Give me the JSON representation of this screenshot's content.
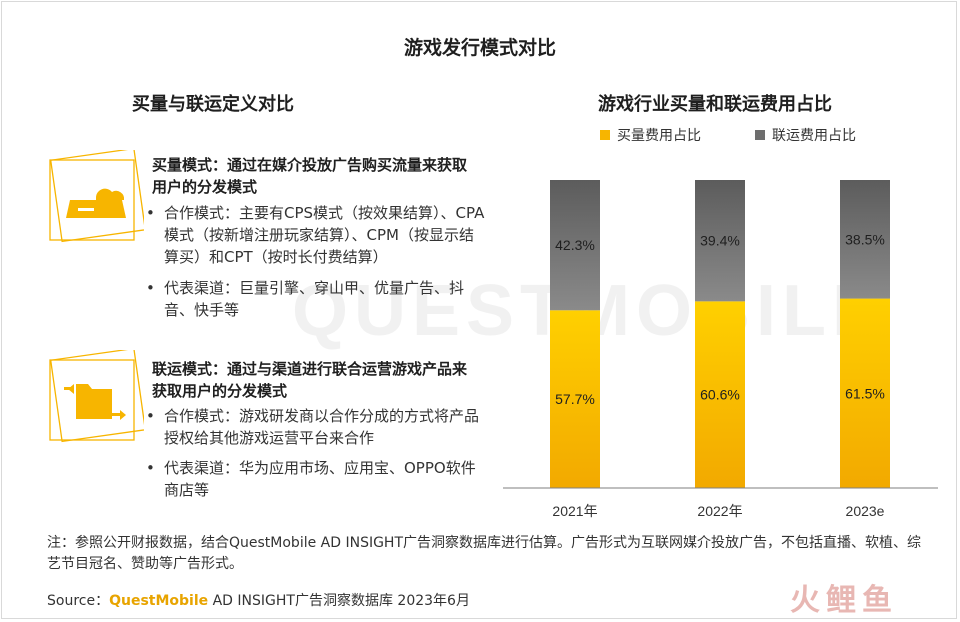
{
  "title": "游戏发行模式对比",
  "left": {
    "title": "买量与联运定义对比",
    "buy": {
      "title": "买量模式：通过在媒介投放广告购买流量来获取用户的分发模式",
      "bullets": [
        "合作模式：主要有CPS模式（按效果结算）、CPA模式（按新增注册玩家结算）、CPM（按显示结算买）和CPT（按时长付费结算）",
        "代表渠道：巨量引擎、穿山甲、优量广告、抖音、快手等"
      ],
      "icon": "cloud-server-icon"
    },
    "joint": {
      "title": "联运模式：通过与渠道进行联合运营游戏产品来获取用户的分发模式",
      "bullets": [
        "合作模式：游戏研发商以合作分成的方式将产品授权给其他游戏运营平台来合作",
        "代表渠道：华为应用市场、应用宝、OPPO软件商店等"
      ],
      "icon": "folder-exchange-icon"
    }
  },
  "chart_data": {
    "type": "bar",
    "stacked": true,
    "title": "游戏行业买量和联运费用占比",
    "categories": [
      "2021年",
      "2022年",
      "2023e"
    ],
    "series": [
      {
        "name": "买量费用占比",
        "values": [
          57.7,
          60.6,
          61.5
        ],
        "labels": [
          "57.7%",
          "60.6%",
          "61.5%"
        ],
        "color": "#f7b500"
      },
      {
        "name": "联运费用占比",
        "values": [
          42.3,
          39.4,
          38.5
        ],
        "labels": [
          "42.3%",
          "39.4%",
          "38.5%"
        ],
        "color": "#6e6e6e"
      }
    ],
    "ylim": [
      0,
      100
    ],
    "grid": false,
    "legend": "top"
  },
  "note": "注：参照公开财报数据，结合QuestMobile AD INSIGHT广告洞察数据库进行估算。广告形式为互联网媒介投放广告，不包括直播、软植、综艺节目冠名、赞助等广告形式。",
  "source": {
    "prefix": "Source：",
    "brand": "QuestMobile",
    "rest": " AD INSIGHT广告洞察数据库 2023年6月"
  },
  "watermark": "QUESTMOBILE",
  "logo": "火鲤鱼"
}
